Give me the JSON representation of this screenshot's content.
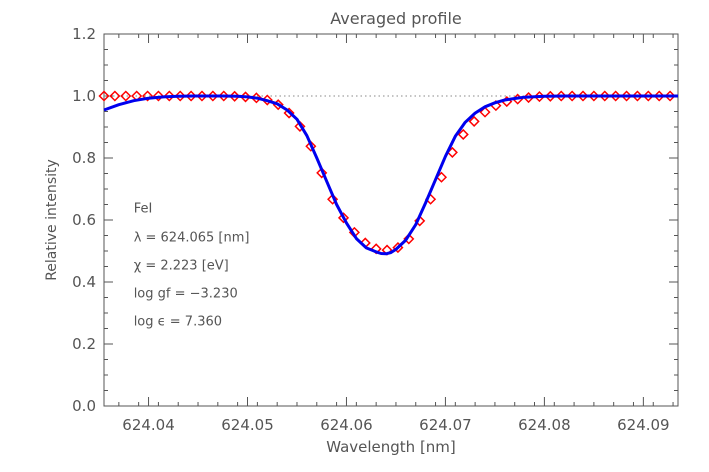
{
  "chart_data": {
    "type": "line",
    "title": "Averaged profile",
    "xlabel": "Wavelength [nm]",
    "ylabel": "Relative intensity",
    "xlim": [
      624.0355,
      624.0935
    ],
    "ylim": [
      0.0,
      1.2
    ],
    "xticks": [
      "624.04",
      "624.05",
      "624.06",
      "624.07",
      "624.08",
      "624.09"
    ],
    "xtick_values": [
      624.04,
      624.05,
      624.06,
      624.07,
      624.08,
      624.09
    ],
    "yticks": [
      "0.0",
      "0.2",
      "0.4",
      "0.6",
      "0.8",
      "1.0",
      "1.2"
    ],
    "ytick_values": [
      0.0,
      0.2,
      0.4,
      0.6,
      0.8,
      1.0,
      1.2
    ],
    "reference_line": {
      "y": 1.0,
      "style": "dotted",
      "color": "#888888"
    },
    "series": [
      {
        "marker": "diamond",
        "color": "#ff0000",
        "x": [
          624.0355,
          624.0366,
          624.0377,
          624.0388,
          624.0399,
          624.041,
          624.0421,
          624.0432,
          624.0443,
          624.0454,
          624.0465,
          624.0476,
          624.0487,
          624.0498,
          624.0509,
          624.052,
          624.0531,
          624.0542,
          624.0553,
          624.0564,
          624.0575,
          624.0586,
          624.0597,
          624.0608,
          624.0619,
          624.063,
          624.0641,
          624.0652,
          624.0663,
          624.0674,
          624.0685,
          624.0696,
          624.0707,
          624.0718,
          624.0729,
          624.074,
          624.0751,
          624.0762,
          624.0773,
          624.0784,
          624.0795,
          624.0806,
          624.0817,
          624.0828,
          624.0839,
          624.085,
          624.0861,
          624.0872,
          624.0883,
          624.0894,
          624.0905,
          624.0916,
          624.0927
        ],
        "y": [
          1.0,
          1.0,
          1.0,
          1.0,
          1.0,
          1.0,
          1.0,
          1.0,
          1.0,
          1.0,
          1.0,
          1.0,
          0.999,
          0.997,
          0.994,
          0.987,
          0.972,
          0.945,
          0.902,
          0.838,
          0.752,
          0.667,
          0.607,
          0.56,
          0.526,
          0.507,
          0.503,
          0.511,
          0.539,
          0.597,
          0.667,
          0.738,
          0.818,
          0.876,
          0.918,
          0.948,
          0.969,
          0.982,
          0.99,
          0.995,
          0.998,
          0.999,
          1.0,
          1.0,
          1.0,
          1.0,
          1.0,
          1.0,
          1.0,
          1.0,
          1.0,
          1.0,
          1.0
        ]
      },
      {
        "marker": "line",
        "color": "#0000ee",
        "x": [
          624.0355,
          624.037,
          624.0385,
          624.04,
          624.0415,
          624.043,
          624.0445,
          624.046,
          624.0475,
          624.049,
          624.05,
          624.051,
          624.052,
          624.053,
          624.054,
          624.055,
          624.056,
          624.057,
          624.058,
          624.059,
          624.06,
          624.061,
          624.062,
          624.063,
          624.0635,
          624.064,
          624.0645,
          624.065,
          624.066,
          624.067,
          624.068,
          624.069,
          624.07,
          624.071,
          624.072,
          624.073,
          624.074,
          624.075,
          624.076,
          624.077,
          624.078,
          624.08,
          624.082,
          624.084,
          624.086,
          624.088,
          624.09,
          624.092,
          624.0935
        ],
        "y": [
          0.955,
          0.972,
          0.985,
          0.993,
          0.997,
          0.999,
          1.0,
          1.0,
          1.0,
          0.999,
          0.997,
          0.993,
          0.985,
          0.975,
          0.955,
          0.925,
          0.872,
          0.8,
          0.725,
          0.65,
          0.59,
          0.54,
          0.51,
          0.497,
          0.492,
          0.491,
          0.495,
          0.505,
          0.535,
          0.585,
          0.655,
          0.73,
          0.805,
          0.87,
          0.915,
          0.945,
          0.965,
          0.978,
          0.987,
          0.992,
          0.996,
          0.999,
          1.0,
          1.0,
          1.0,
          1.0,
          1.0,
          1.0,
          1.0
        ]
      }
    ],
    "annotations": [
      {
        "text": "FeI",
        "x": 624.0385,
        "y": 0.625
      },
      {
        "text": "λ = 624.065 [nm]",
        "x": 624.0385,
        "y": 0.53
      },
      {
        "text": "χ =  2.223 [eV]",
        "x": 624.0385,
        "y": 0.44
      },
      {
        "text": "log gf = −3.230",
        "x": 624.0385,
        "y": 0.35
      },
      {
        "text": "log ϵ =  7.360",
        "x": 624.0385,
        "y": 0.26
      }
    ]
  }
}
